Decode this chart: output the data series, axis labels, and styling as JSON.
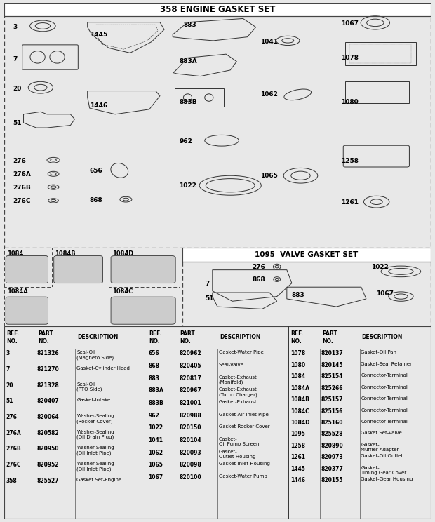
{
  "title_main": "358 ENGINE GASKET SET",
  "title_valve": "1095  VALVE GASKET SET",
  "bg_color": "#ffffff",
  "page_bg": "#e8e8e8",
  "table_col1": [
    [
      "3",
      "821326",
      "Seal-Oil\n(Magneto Side)"
    ],
    [
      "7",
      "821270",
      "Gasket-Cylinder Head"
    ],
    [
      "20",
      "821328",
      "Seal-Oil\n(PTO Side)"
    ],
    [
      "51",
      "820407",
      "Gasket-Intake"
    ],
    [
      "276",
      "820064",
      "Washer-Sealing\n(Rocker Cover)"
    ],
    [
      "276A",
      "820582",
      "Washer-Sealing\n(Oil Drain Plug)"
    ],
    [
      "276B",
      "820950",
      "Washer-Sealing\n(Oil Inlet Pipe)"
    ],
    [
      "276C",
      "820952",
      "Washer-Sealing\n(Oil Inlet Pipe)"
    ],
    [
      "358",
      "825527",
      "Gasket Set-Engine"
    ]
  ],
  "table_col2": [
    [
      "656",
      "820962",
      "Gasket-Water Pipe"
    ],
    [
      "868",
      "820405",
      "Seal-Valve"
    ],
    [
      "883",
      "820817",
      "Gasket-Exhaust\n(Manifold)"
    ],
    [
      "883A",
      "820967",
      "Gasket-Exhaust\n(Turbo Charger)"
    ],
    [
      "883B",
      "821001",
      "Gasket-Exhaust"
    ],
    [
      "962",
      "820988",
      "Gasket-Air Inlet Pipe"
    ],
    [
      "1022",
      "820150",
      "Gasket-Rocker Cover"
    ],
    [
      "1041",
      "820104",
      "Gasket-\nOil Pump Screen"
    ],
    [
      "1062",
      "820093",
      "Gasket-\nOutlet Housing"
    ],
    [
      "1065",
      "820098",
      "Gasket-Inlet Housing"
    ],
    [
      "1067",
      "820100",
      "Gasket-Water Pump"
    ]
  ],
  "table_col3": [
    [
      "1078",
      "820137",
      "Gasket-Oil Pan"
    ],
    [
      "1080",
      "820145",
      "Gasket-Seal Retainer"
    ],
    [
      "1084",
      "825154",
      "Connector-Terminal"
    ],
    [
      "1084A",
      "825266",
      "Connector-Terminal"
    ],
    [
      "1084B",
      "825157",
      "Connector-Terminal"
    ],
    [
      "1084C",
      "825156",
      "Connector-Terminal"
    ],
    [
      "1084D",
      "825160",
      "Connector-Terminal"
    ],
    [
      "1095",
      "825528",
      "Gasket Set-Valve"
    ],
    [
      "1258",
      "820890",
      "Gasket-\nMuffler Adapter"
    ],
    [
      "1261",
      "820973",
      "Gasket-Oil Outlet"
    ],
    [
      "1445",
      "820377",
      "Gasket-\nTiming Gear Cover"
    ],
    [
      "1446",
      "820155",
      "Gasket-Gear Housing"
    ]
  ]
}
